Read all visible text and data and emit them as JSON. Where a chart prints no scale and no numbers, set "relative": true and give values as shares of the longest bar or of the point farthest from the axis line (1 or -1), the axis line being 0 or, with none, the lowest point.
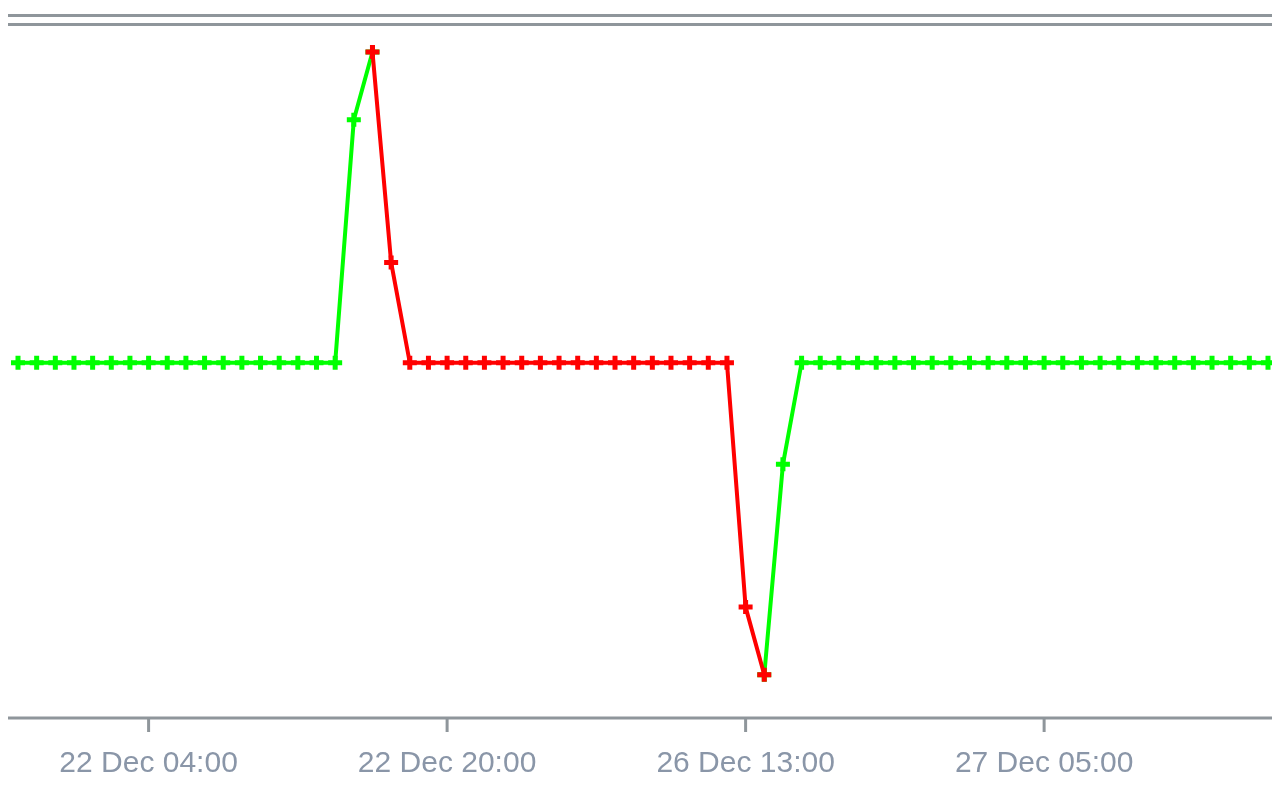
{
  "chart_data": {
    "type": "line",
    "relative": true,
    "marker": "cross",
    "categories": [
      null,
      null,
      null,
      null,
      null,
      null,
      null,
      "22 Dec 04:00",
      null,
      null,
      null,
      null,
      null,
      null,
      null,
      null,
      null,
      null,
      null,
      null,
      null,
      null,
      null,
      "22 Dec 20:00",
      null,
      null,
      null,
      null,
      null,
      null,
      null,
      null,
      null,
      null,
      null,
      null,
      null,
      null,
      null,
      "26 Dec 13:00",
      null,
      null,
      null,
      null,
      null,
      null,
      null,
      null,
      null,
      null,
      null,
      null,
      null,
      null,
      null,
      "27 Dec 05:00",
      null,
      null,
      null,
      null,
      null,
      null,
      null,
      null,
      null,
      null,
      null,
      null
    ],
    "series": [
      {
        "color": "#00ff00",
        "values": [
          0.532,
          0.532,
          0.532,
          0.532,
          0.532,
          0.532,
          0.532,
          0.532,
          0.532,
          0.532,
          0.532,
          0.532,
          0.532,
          0.532,
          0.532,
          0.532,
          0.532,
          0.532,
          0.898,
          1,
          null,
          null,
          null,
          null,
          null,
          null,
          null,
          null,
          null,
          null,
          null,
          null,
          null,
          null,
          null,
          null,
          null,
          null,
          null,
          null,
          0.062,
          0.379,
          0.532,
          0.532,
          0.532,
          0.532,
          0.532,
          0.532,
          0.532,
          0.532,
          0.532,
          0.532,
          0.532,
          0.532,
          0.532,
          0.532,
          0.532,
          0.532,
          0.532,
          0.532,
          0.532,
          0.532,
          0.532,
          0.532,
          0.532,
          0.532,
          0.532,
          0.532
        ]
      },
      {
        "color": "#ff0000",
        "values": [
          null,
          null,
          null,
          null,
          null,
          null,
          null,
          null,
          null,
          null,
          null,
          null,
          null,
          null,
          null,
          null,
          null,
          null,
          null,
          1,
          0.683,
          0.532,
          0.532,
          0.532,
          0.532,
          0.532,
          0.532,
          0.532,
          0.532,
          0.532,
          0.532,
          0.532,
          0.532,
          0.532,
          0.532,
          0.532,
          0.532,
          0.532,
          0.532,
          0.164,
          0.062,
          null,
          null,
          null,
          null,
          null,
          null,
          null,
          null,
          null,
          null,
          null,
          null,
          null,
          null,
          null,
          null,
          null,
          null,
          null,
          null,
          null,
          null,
          null,
          null,
          null,
          null,
          null
        ]
      }
    ]
  }
}
